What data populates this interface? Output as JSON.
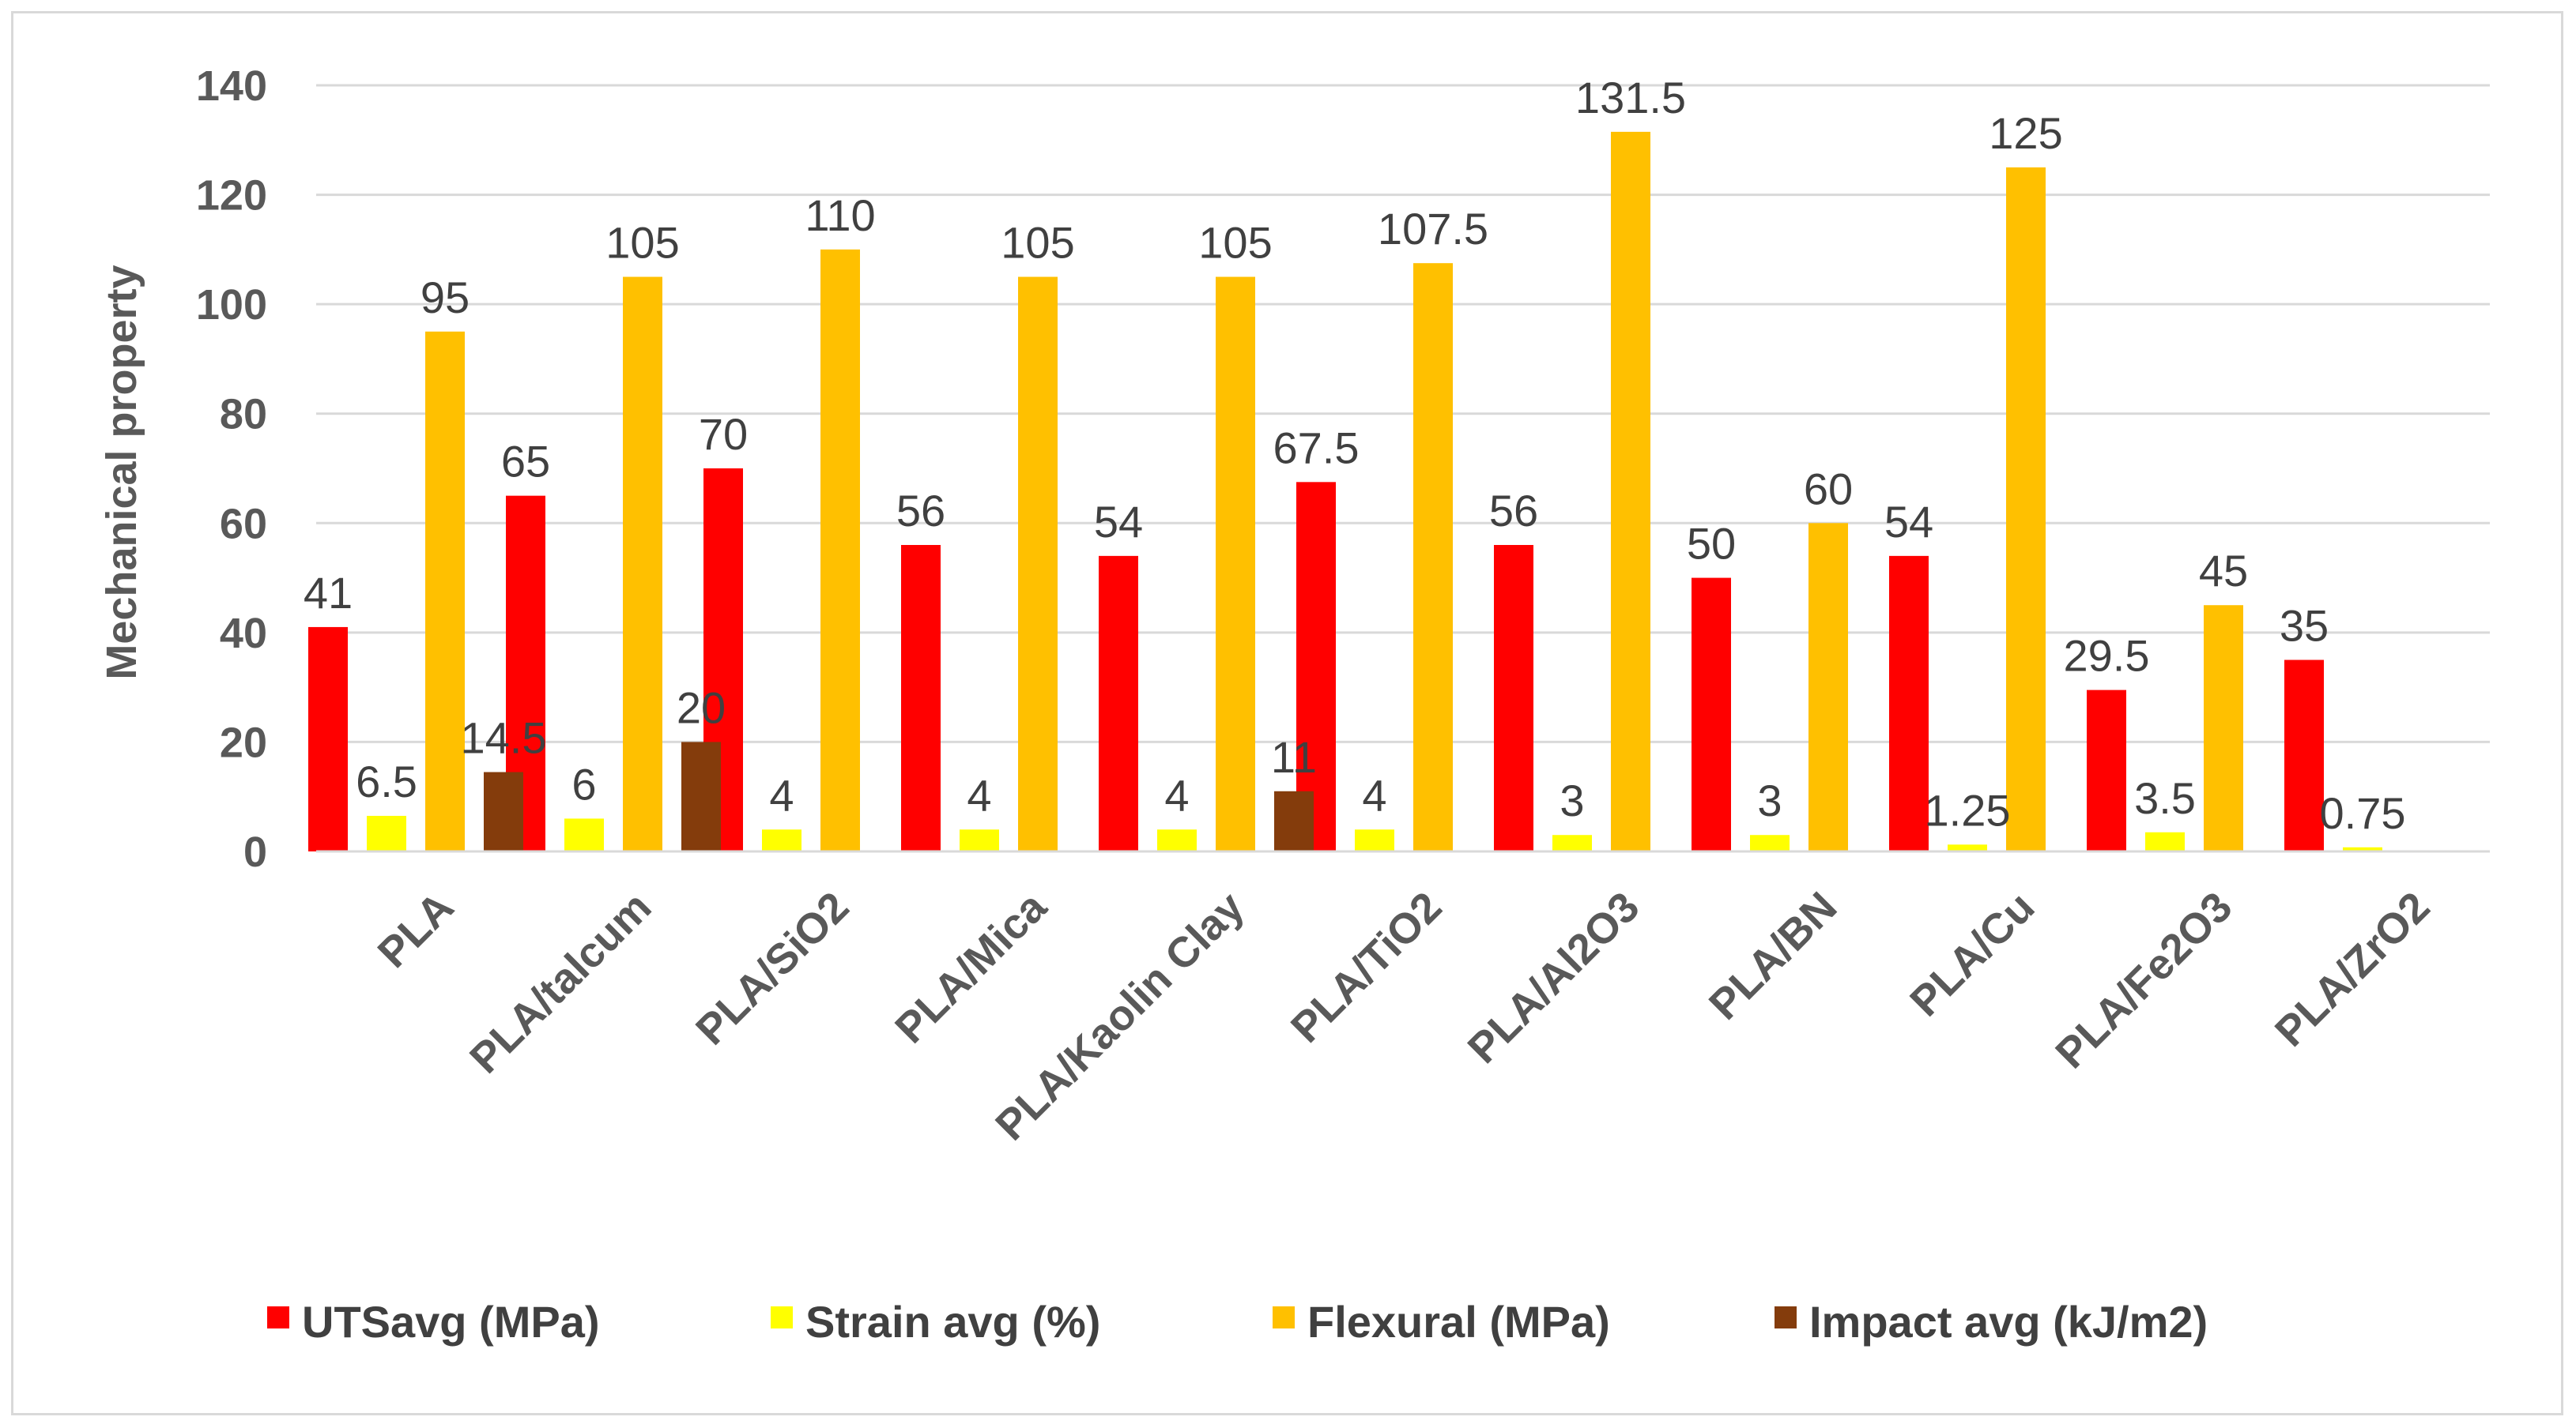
{
  "chart_data": {
    "type": "bar",
    "title": "",
    "xlabel": "",
    "ylabel": "Mechanical property",
    "ylim": [
      0,
      140
    ],
    "yticks": [
      0,
      20,
      40,
      60,
      80,
      100,
      120,
      140
    ],
    "grid": true,
    "legend_position": "bottom",
    "categories": [
      "PLA",
      "PLA/talcum",
      "PLA/SiO2",
      "PLA/Mica",
      "PLA/Kaolin Clay",
      "PLA/TiO2",
      "PLA/Al2O3",
      "PLA/BN",
      "PLA/Cu",
      "PLA/Fe2O3",
      "PLA/ZrO2"
    ],
    "series": [
      {
        "name": "UTSavg (MPa)",
        "color": "#ff0000",
        "values": [
          41,
          65,
          70,
          56,
          54,
          67.5,
          56,
          50,
          54,
          29.5,
          35
        ],
        "labels": [
          "41",
          "65",
          "70",
          "56",
          "54",
          "67.5",
          "56",
          "50",
          "54",
          "29.5",
          "35"
        ]
      },
      {
        "name": "Strain avg (%)",
        "color": "#ffff00",
        "values": [
          6.5,
          6,
          4,
          4,
          4,
          4,
          3,
          3,
          1.25,
          3.5,
          0.75
        ],
        "labels": [
          "6.5",
          "6",
          "4",
          "4",
          "4",
          "4",
          "3",
          "3",
          "1.25",
          "3.5",
          "0.75"
        ]
      },
      {
        "name": "Flexural (MPa)",
        "color": "#ffc000",
        "values": [
          95,
          105,
          110,
          105,
          105,
          107.5,
          131.5,
          60,
          125,
          45,
          null
        ],
        "labels": [
          "95",
          "105",
          "110",
          "105",
          "105",
          "107.5",
          "131.5",
          "60",
          "125",
          "45",
          null
        ]
      },
      {
        "name": "Impact avg (kJ/m2)",
        "color": "#843c0c",
        "values": [
          14.5,
          20,
          null,
          null,
          11,
          null,
          null,
          null,
          null,
          null,
          null
        ],
        "labels": [
          "14.5",
          "20",
          null,
          null,
          "11",
          null,
          null,
          null,
          null,
          null,
          null
        ]
      }
    ]
  }
}
